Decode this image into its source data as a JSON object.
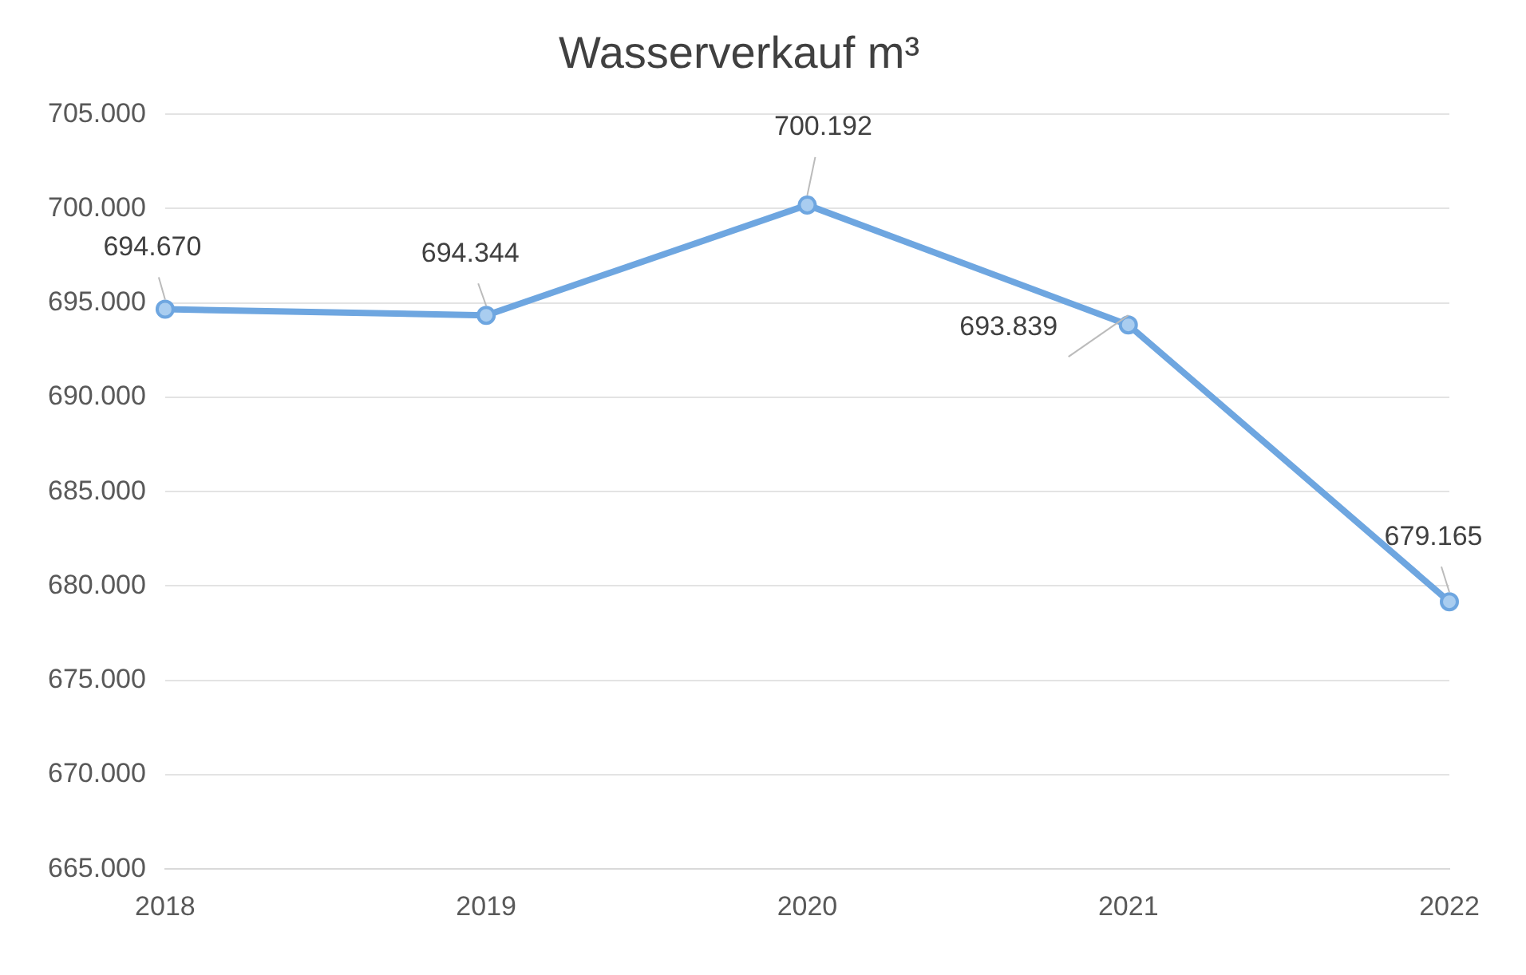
{
  "chart_data": {
    "type": "line",
    "title": "Wasserverkauf m³",
    "categories": [
      "2018",
      "2019",
      "2020",
      "2021",
      "2022"
    ],
    "series": [
      {
        "color": "#6ea6e0",
        "values": [
          694670,
          694344,
          700192,
          693839,
          679165
        ],
        "value_labels": [
          "694.670",
          "694.344",
          "700.192",
          "693.839",
          "679.165"
        ]
      }
    ],
    "ylim": [
      665000,
      705000
    ],
    "yticks": [
      {
        "value": 665000,
        "label": "665.000"
      },
      {
        "value": 670000,
        "label": "670.000"
      },
      {
        "value": 675000,
        "label": "675.000"
      },
      {
        "value": 680000,
        "label": "680.000"
      },
      {
        "value": 685000,
        "label": "685.000"
      },
      {
        "value": 690000,
        "label": "690.000"
      },
      {
        "value": 695000,
        "label": "695.000"
      },
      {
        "value": 700000,
        "label": "700.000"
      },
      {
        "value": 705000,
        "label": "705.000"
      }
    ],
    "grid": "y",
    "legend": false,
    "marker": "circle",
    "line_style": "solid"
  }
}
